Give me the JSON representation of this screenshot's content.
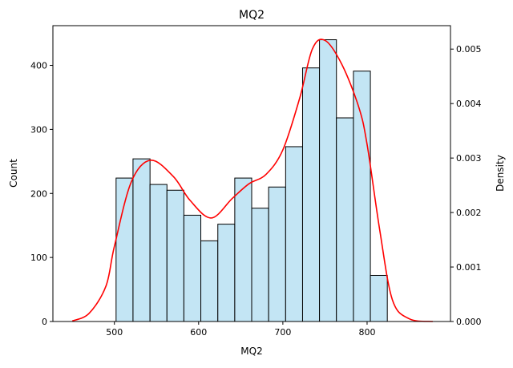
{
  "chart_data": {
    "type": "bar",
    "title": "MQ2",
    "xlabel": "MQ2",
    "ylabel": "Count",
    "y2label": "Density",
    "xlim": [
      427,
      899
    ],
    "ylim": [
      0,
      462
    ],
    "y2lim": [
      0,
      0.00543
    ],
    "xticks": [
      500,
      600,
      700,
      800
    ],
    "yticks": [
      0,
      100,
      200,
      300,
      400
    ],
    "y2ticks": [
      "0.000",
      "0.001",
      "0.002",
      "0.003",
      "0.004",
      "0.005"
    ],
    "grid": false,
    "bins": {
      "edges": [
        502,
        522.1,
        542.3,
        562.4,
        582.5,
        602.6,
        622.8,
        642.9,
        663.0,
        683.1,
        703.3,
        723.4,
        743.5,
        763.6,
        783.8,
        803.9,
        824
      ],
      "counts": [
        224,
        254,
        214,
        205,
        166,
        126,
        152,
        224,
        177,
        210,
        273,
        396,
        440,
        318,
        391,
        72
      ]
    },
    "kde": {
      "x": [
        450,
        470,
        490,
        500,
        520,
        543,
        570,
        590,
        615,
        640,
        660,
        680,
        700,
        720,
        735,
        750,
        770,
        790,
        800,
        815,
        830,
        850,
        878
      ],
      "density": [
        1e-05,
        0.00015,
        0.00065,
        0.00138,
        0.00256,
        0.00296,
        0.00266,
        0.00222,
        0.0019,
        0.00226,
        0.00253,
        0.0027,
        0.00315,
        0.0041,
        0.005,
        0.00516,
        0.00472,
        0.00394,
        0.00325,
        0.00168,
        0.0004,
        5e-05,
        0.0
      ]
    },
    "colors": {
      "bars": "#c3e5f4",
      "bar_edge": "#000000",
      "kde": "#ff0000"
    }
  }
}
